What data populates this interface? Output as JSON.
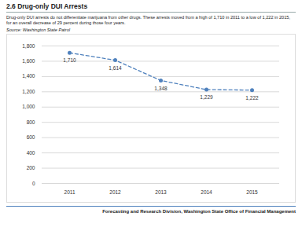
{
  "chart_data": {
    "type": "line",
    "title": "2.6 Drug-only DUI Arrests",
    "subtitle": "Drug-only DUI arrests do not differentiate marijuana from other drugs. These arrests moved from a high of 1,710 in 2011 to a low of 1,222 in 2015, for an overall decrease of 29 percent during those four years.",
    "annotations": [
      "Source: Washington State Patrol",
      "Forecasting and Research Division, Washington State Office of Financial Management"
    ],
    "categories": [
      "2011",
      "2012",
      "2013",
      "2014",
      "2015"
    ],
    "values": [
      1710,
      1614,
      1348,
      1229,
      1222
    ],
    "value_labels": [
      "1,710",
      "1,614",
      "1,348",
      "1,229",
      "1,222"
    ],
    "color": "#4f81bd",
    "line_style": "dashed",
    "marker": "circle",
    "data_labels": true,
    "grid": true,
    "ylim": [
      0,
      1800
    ],
    "yticks": [
      0,
      200,
      400,
      600,
      800,
      {
        "value": 1000,
        "label": "1,000"
      },
      {
        "value": 1200,
        "label": "1,200"
      },
      {
        "value": 1400,
        "label": "1,400"
      },
      {
        "value": 1600,
        "label": "1,600"
      },
      {
        "value": 1800,
        "label": "1,800"
      }
    ]
  }
}
